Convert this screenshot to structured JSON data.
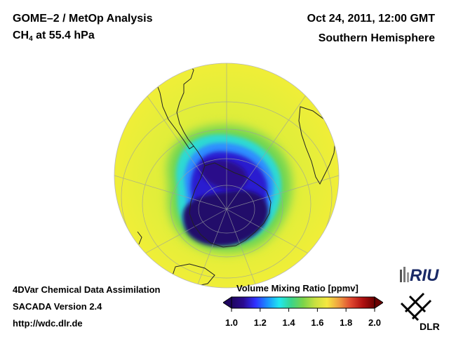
{
  "header": {
    "title_line1": "GOME–2 / MetOp Analysis",
    "species": "CH",
    "species_sub": "4",
    "species_suffix": " at 55.4 hPa",
    "datetime": "Oct 24, 2011, 12:00 GMT",
    "region": "Southern Hemisphere"
  },
  "footer": {
    "line1": "4DVar Chemical Data Assimilation",
    "line2": "SACADA Version 2.4",
    "line3": "http://wdc.dlr.de"
  },
  "colorbar": {
    "title": "Volume Mixing Ratio [ppmv]",
    "ticks": [
      "1.0",
      "1.2",
      "1.4",
      "1.6",
      "1.8",
      "2.0"
    ],
    "min": 1.0,
    "max": 2.0,
    "colors": [
      "#1e0560",
      "#2a0a90",
      "#3030ff",
      "#1a90ff",
      "#20e8f0",
      "#3ad48a",
      "#7bd44a",
      "#c8e040",
      "#f5e840",
      "#f0a040",
      "#e04830",
      "#b01010",
      "#6a0000"
    ]
  },
  "map": {
    "projection": "orthographic",
    "center": "South Pole",
    "background_color": "#e9ee3c"
  },
  "logos": {
    "riu_text": "RIU",
    "dlr_text": "DLR"
  }
}
